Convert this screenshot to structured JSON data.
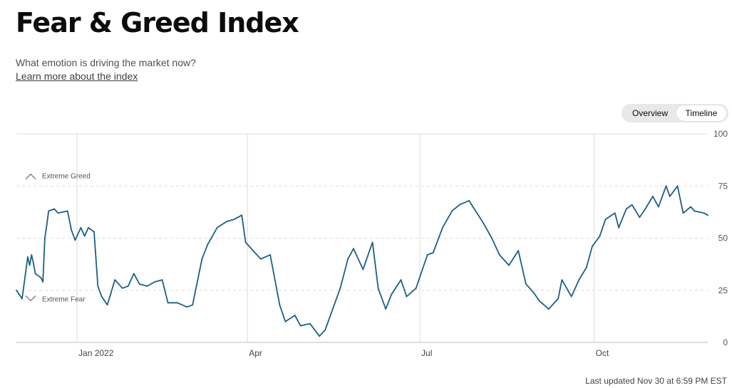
{
  "header": {
    "title": "Fear & Greed Index",
    "subtitle": "What emotion is driving the market now?",
    "learn_more": "Learn more about the index"
  },
  "view_toggle": {
    "options": [
      "Overview",
      "Timeline"
    ],
    "selected": "Timeline"
  },
  "footer": {
    "last_updated": "Last updated Nov 30 at 6:59 PM EST"
  },
  "colors": {
    "line": "#1d5f86",
    "grid": "#dcdcdc",
    "axis": "#bdbdbd"
  },
  "chart_data": {
    "type": "line",
    "title": "",
    "xlabel": "",
    "ylabel": "",
    "ylim": [
      0,
      100
    ],
    "yticks": [
      0,
      25,
      50,
      75,
      100
    ],
    "xlim": [
      "2021-11-30",
      "2022-11-30"
    ],
    "xticks": [
      {
        "date": "2022-01-01",
        "label": "Jan 2022"
      },
      {
        "date": "2022-04-01",
        "label": "Apr"
      },
      {
        "date": "2022-07-01",
        "label": "Jul"
      },
      {
        "date": "2022-10-01",
        "label": "Oct"
      }
    ],
    "grid": true,
    "annotations": [
      {
        "label": "Extreme Greed",
        "icon": "chevron-up-icon",
        "y": 80
      },
      {
        "label": "Extreme Fear",
        "icon": "chevron-down-icon",
        "y": 21
      }
    ],
    "series": [
      {
        "name": "",
        "x": [
          "2021-11-30",
          "2021-12-03",
          "2021-12-06",
          "2021-12-07",
          "2021-12-08",
          "2021-12-09",
          "2021-12-10",
          "2021-12-13",
          "2021-12-14",
          "2021-12-15",
          "2021-12-16",
          "2021-12-17",
          "2021-12-20",
          "2021-12-22",
          "2021-12-27",
          "2021-12-29",
          "2021-12-31",
          "2022-01-03",
          "2022-01-05",
          "2022-01-07",
          "2022-01-10",
          "2022-01-12",
          "2022-01-14",
          "2022-01-17",
          "2022-01-19",
          "2022-01-21",
          "2022-01-25",
          "2022-01-28",
          "2022-01-31",
          "2022-02-03",
          "2022-02-07",
          "2022-02-11",
          "2022-02-15",
          "2022-02-18",
          "2022-02-23",
          "2022-02-28",
          "2022-03-03",
          "2022-03-08",
          "2022-03-11",
          "2022-03-16",
          "2022-03-21",
          "2022-03-25",
          "2022-03-29",
          "2022-03-31",
          "2022-04-04",
          "2022-04-08",
          "2022-04-13",
          "2022-04-18",
          "2022-04-21",
          "2022-04-26",
          "2022-04-29",
          "2022-05-04",
          "2022-05-09",
          "2022-05-12",
          "2022-05-16",
          "2022-05-20",
          "2022-05-24",
          "2022-05-27",
          "2022-06-01",
          "2022-06-06",
          "2022-06-09",
          "2022-06-13",
          "2022-06-16",
          "2022-06-21",
          "2022-06-24",
          "2022-06-29",
          "2022-07-05",
          "2022-07-08",
          "2022-07-13",
          "2022-07-18",
          "2022-07-22",
          "2022-07-27",
          "2022-07-29",
          "2022-08-03",
          "2022-08-08",
          "2022-08-12",
          "2022-08-17",
          "2022-08-22",
          "2022-08-26",
          "2022-08-30",
          "2022-09-02",
          "2022-09-07",
          "2022-09-12",
          "2022-09-14",
          "2022-09-19",
          "2022-09-23",
          "2022-09-27",
          "2022-09-30",
          "2022-10-04",
          "2022-10-07",
          "2022-10-12",
          "2022-10-14",
          "2022-10-18",
          "2022-10-21",
          "2022-10-25",
          "2022-10-28",
          "2022-11-01",
          "2022-11-04",
          "2022-11-08",
          "2022-11-10",
          "2022-11-14",
          "2022-11-17",
          "2022-11-21",
          "2022-11-23",
          "2022-11-28",
          "2022-11-30"
        ],
        "values": [
          25,
          21,
          41,
          37,
          42,
          38,
          33,
          31,
          29,
          50,
          56,
          63,
          64,
          62,
          63,
          54,
          49,
          55,
          51,
          55,
          53,
          27,
          22,
          18,
          24,
          30,
          26,
          27,
          33,
          28,
          27,
          29,
          30,
          19,
          19,
          17,
          18,
          40,
          47,
          55,
          58,
          59,
          61,
          48,
          44,
          40,
          42,
          18,
          10,
          13,
          8,
          9,
          3,
          6,
          16,
          26,
          40,
          45,
          35,
          48,
          26,
          16,
          23,
          30,
          22,
          26,
          42,
          43,
          55,
          63,
          66,
          68,
          65,
          58,
          50,
          42,
          37,
          44,
          28,
          24,
          20,
          16,
          21,
          30,
          22,
          30,
          36,
          46,
          51,
          59,
          62,
          55,
          64,
          66,
          60,
          64,
          70,
          65,
          75,
          70,
          75,
          62,
          65,
          63,
          62,
          61
        ]
      }
    ]
  }
}
